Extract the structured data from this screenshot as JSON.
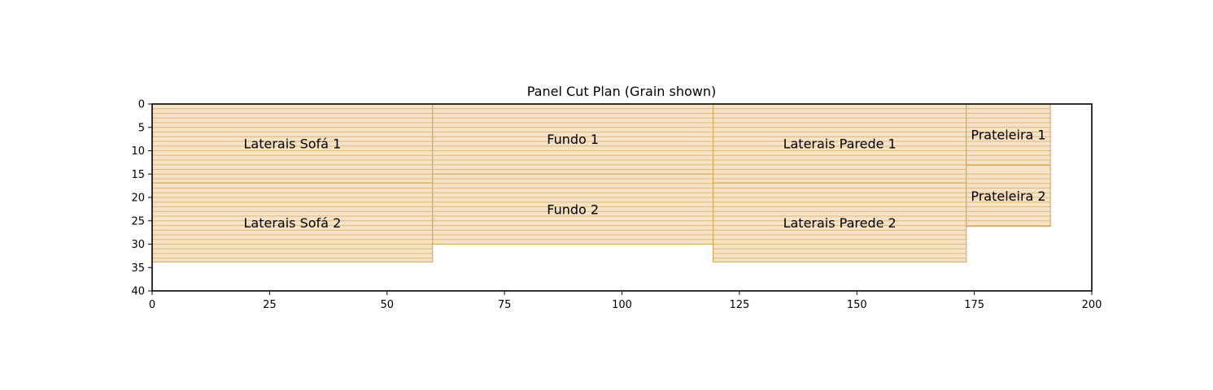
{
  "chart_data": {
    "type": "cut-plan",
    "title": "Panel Cut Plan (Grain shown)",
    "xlabel": "",
    "ylabel": "",
    "xlim": [
      0,
      200
    ],
    "ylim": [
      40,
      0
    ],
    "x_ticks": [
      0,
      25,
      50,
      75,
      100,
      125,
      150,
      175,
      200
    ],
    "y_ticks": [
      0,
      5,
      10,
      15,
      20,
      25,
      30,
      35,
      40
    ],
    "grid": false,
    "colors": {
      "panel_fill": "#f5e3c8",
      "panel_edge": "#d4a24a",
      "grain_line": "#e3b878"
    },
    "grain": "horizontal",
    "panels": [
      {
        "name": "Laterais Sofá 1",
        "x": 0,
        "y": 0,
        "width": 59.7,
        "height": 16.9
      },
      {
        "name": "Laterais Sofá 2",
        "x": 0,
        "y": 16.9,
        "width": 59.7,
        "height": 16.9
      },
      {
        "name": "Fundo 1",
        "x": 59.7,
        "y": 0,
        "width": 59.7,
        "height": 15.0
      },
      {
        "name": "Fundo 2",
        "x": 59.7,
        "y": 15.0,
        "width": 59.7,
        "height": 15.0
      },
      {
        "name": "Laterais Parede 1",
        "x": 119.4,
        "y": 0,
        "width": 53.9,
        "height": 16.9
      },
      {
        "name": "Laterais Parede 2",
        "x": 119.4,
        "y": 16.9,
        "width": 53.9,
        "height": 16.9
      },
      {
        "name": "Prateleira 1",
        "x": 173.3,
        "y": 0,
        "width": 17.9,
        "height": 13.1
      },
      {
        "name": "Prateleira 2",
        "x": 173.3,
        "y": 13.1,
        "width": 17.9,
        "height": 13.1
      }
    ]
  }
}
